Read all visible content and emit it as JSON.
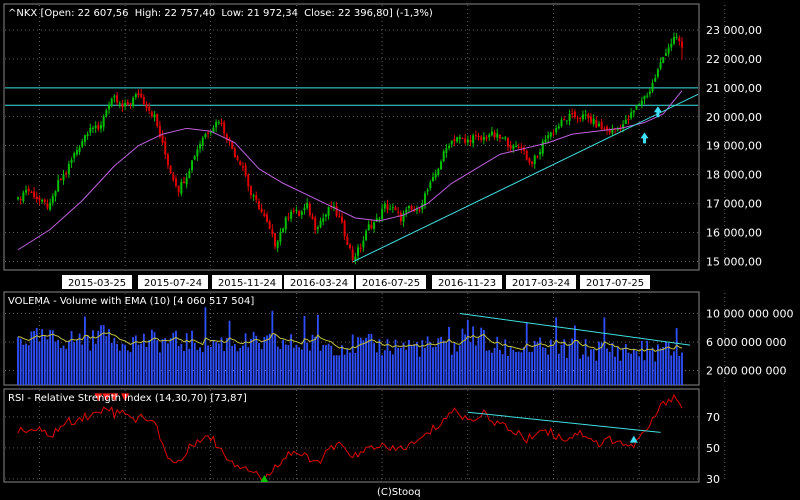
{
  "header": {
    "symbol": "^NKX",
    "open_label": "Open:",
    "open": "22 607,56",
    "high_label": "High:",
    "high": "22 757,40",
    "low_label": "Low:",
    "low": "21 972,34",
    "close_label": "Close:",
    "close": "22 396,80",
    "change": "(-1,3%)"
  },
  "footer": {
    "credit": "(C)Stooq"
  },
  "colors": {
    "up_candle": "#00c000",
    "down_candle": "#e00000",
    "ema": "#c060e0",
    "trendline": "#40e0e0",
    "volume": "#3050ff",
    "volume_ema": "#c0c040",
    "rsi": "#e00000",
    "arrow_up": "#40e0ff",
    "arrow_down": "#ff2020",
    "grid": "#9a9a9a"
  },
  "chart_data": [
    {
      "type": "candlestick",
      "title": "^NKX",
      "x_tick_labels": [
        "2015-03-25",
        "2015-07-24",
        "2015-11-24",
        "2016-03-24",
        "2016-07-25",
        "2016-11-23",
        "2017-03-24",
        "2017-07-25"
      ],
      "y_tick_labels": [
        "23 000,00",
        "22 000,00",
        "21 000,00",
        "20 000,00",
        "19 000,00",
        "18 000,00",
        "17 000,00",
        "16 000,00",
        "15 000,00"
      ],
      "y_ticks": [
        23000,
        22000,
        21000,
        20000,
        19000,
        18000,
        17000,
        16000,
        15000
      ],
      "ylim": [
        14700,
        23900
      ],
      "last_candle": {
        "open": 22607.56,
        "high": 22757.4,
        "low": 21972.34,
        "close": 22396.8
      },
      "close_path": [
        [
          0,
          17100
        ],
        [
          3,
          17500
        ],
        [
          6,
          17300
        ],
        [
          9,
          17000
        ],
        [
          12,
          16900
        ],
        [
          15,
          17700
        ],
        [
          18,
          18100
        ],
        [
          21,
          18700
        ],
        [
          24,
          19200
        ],
        [
          27,
          19700
        ],
        [
          30,
          19500
        ],
        [
          33,
          20300
        ],
        [
          36,
          20600
        ],
        [
          39,
          20300
        ],
        [
          42,
          20500
        ],
        [
          45,
          20800
        ],
        [
          48,
          20400
        ],
        [
          51,
          20000
        ],
        [
          54,
          19000
        ],
        [
          57,
          18100
        ],
        [
          60,
          17500
        ],
        [
          63,
          18000
        ],
        [
          66,
          18700
        ],
        [
          69,
          19300
        ],
        [
          72,
          19600
        ],
        [
          75,
          19900
        ],
        [
          78,
          19300
        ],
        [
          81,
          18700
        ],
        [
          84,
          18300
        ],
        [
          87,
          17300
        ],
        [
          90,
          16900
        ],
        [
          93,
          16300
        ],
        [
          96,
          15600
        ],
        [
          99,
          16200
        ],
        [
          102,
          16800
        ],
        [
          105,
          16600
        ],
        [
          108,
          16900
        ],
        [
          111,
          16200
        ],
        [
          114,
          16500
        ],
        [
          117,
          16900
        ],
        [
          120,
          16500
        ],
        [
          123,
          15700
        ],
        [
          125,
          15100
        ],
        [
          128,
          15500
        ],
        [
          131,
          16200
        ],
        [
          134,
          16400
        ],
        [
          137,
          16900
        ],
        [
          140,
          16800
        ],
        [
          143,
          16500
        ],
        [
          146,
          16800
        ],
        [
          149,
          16700
        ],
        [
          152,
          17300
        ],
        [
          155,
          17800
        ],
        [
          158,
          18500
        ],
        [
          161,
          19100
        ],
        [
          164,
          19300
        ],
        [
          167,
          19100
        ],
        [
          170,
          19300
        ],
        [
          173,
          19200
        ],
        [
          176,
          19400
        ],
        [
          179,
          19300
        ],
        [
          182,
          19200
        ],
        [
          185,
          18900
        ],
        [
          188,
          19000
        ],
        [
          191,
          18400
        ],
        [
          194,
          18600
        ],
        [
          197,
          19300
        ],
        [
          200,
          19500
        ],
        [
          203,
          19800
        ],
        [
          206,
          20000
        ],
        [
          209,
          20000
        ],
        [
          212,
          20000
        ],
        [
          215,
          19800
        ],
        [
          218,
          19600
        ],
        [
          221,
          19500
        ],
        [
          224,
          19600
        ],
        [
          227,
          19800
        ],
        [
          230,
          20200
        ],
        [
          233,
          20600
        ],
        [
          236,
          20900
        ],
        [
          239,
          21600
        ],
        [
          242,
          22300
        ],
        [
          245,
          22700
        ],
        [
          247,
          22600
        ],
        [
          248,
          22397
        ]
      ],
      "ema_path": [
        [
          0,
          15400
        ],
        [
          12,
          16100
        ],
        [
          24,
          17100
        ],
        [
          36,
          18300
        ],
        [
          45,
          19000
        ],
        [
          54,
          19400
        ],
        [
          63,
          19600
        ],
        [
          72,
          19500
        ],
        [
          81,
          19100
        ],
        [
          90,
          18200
        ],
        [
          99,
          17700
        ],
        [
          108,
          17300
        ],
        [
          117,
          16900
        ],
        [
          126,
          16500
        ],
        [
          135,
          16400
        ],
        [
          144,
          16600
        ],
        [
          153,
          17000
        ],
        [
          162,
          17700
        ],
        [
          171,
          18200
        ],
        [
          180,
          18700
        ],
        [
          189,
          18900
        ],
        [
          198,
          19100
        ],
        [
          207,
          19400
        ],
        [
          216,
          19500
        ],
        [
          225,
          19600
        ],
        [
          234,
          19800
        ],
        [
          241,
          20100
        ],
        [
          248,
          20900
        ]
      ],
      "horizontal_lines": [
        21000,
        20400
      ],
      "trendline": [
        [
          125,
          14980
        ],
        [
          248,
          20500
        ]
      ]
    },
    {
      "type": "bar",
      "title": "VOLEMA - Volume with EMA (10) [4 060 517 504]",
      "y_tick_labels": [
        "10 000 000 000",
        "6 000 000 000",
        "2 000 000 000"
      ],
      "y_ticks": [
        10000000000,
        6000000000,
        2000000000
      ],
      "ylim": [
        0,
        13000000000
      ]
    },
    {
      "type": "line",
      "title": "RSI - Relative Strength Index (14,30,70) [73,87]",
      "y_tick_labels": [
        "70",
        "50",
        "30"
      ],
      "y_ticks": [
        70,
        50,
        30
      ],
      "ylim": [
        28,
        88
      ],
      "path": [
        [
          0,
          60
        ],
        [
          6,
          62
        ],
        [
          12,
          58
        ],
        [
          18,
          66
        ],
        [
          24,
          70
        ],
        [
          30,
          72
        ],
        [
          33,
          78
        ],
        [
          36,
          72
        ],
        [
          40,
          74
        ],
        [
          44,
          68
        ],
        [
          48,
          70
        ],
        [
          52,
          63
        ],
        [
          55,
          48
        ],
        [
          58,
          40
        ],
        [
          61,
          42
        ],
        [
          65,
          52
        ],
        [
          69,
          58
        ],
        [
          73,
          55
        ],
        [
          77,
          46
        ],
        [
          81,
          40
        ],
        [
          85,
          38
        ],
        [
          89,
          34
        ],
        [
          92,
          28
        ],
        [
          95,
          36
        ],
        [
          99,
          44
        ],
        [
          103,
          48
        ],
        [
          107,
          44
        ],
        [
          111,
          40
        ],
        [
          115,
          46
        ],
        [
          119,
          52
        ],
        [
          123,
          48
        ],
        [
          127,
          44
        ],
        [
          131,
          50
        ],
        [
          135,
          52
        ],
        [
          139,
          48
        ],
        [
          143,
          50
        ],
        [
          147,
          52
        ],
        [
          151,
          56
        ],
        [
          155,
          62
        ],
        [
          159,
          68
        ],
        [
          162,
          74
        ],
        [
          165,
          72
        ],
        [
          168,
          68
        ],
        [
          171,
          70
        ],
        [
          175,
          72
        ],
        [
          179,
          66
        ],
        [
          183,
          62
        ],
        [
          187,
          60
        ],
        [
          190,
          54
        ],
        [
          193,
          60
        ],
        [
          197,
          62
        ],
        [
          201,
          58
        ],
        [
          205,
          56
        ],
        [
          209,
          60
        ],
        [
          213,
          58
        ],
        [
          217,
          52
        ],
        [
          221,
          56
        ],
        [
          225,
          54
        ],
        [
          229,
          50
        ],
        [
          233,
          58
        ],
        [
          236,
          64
        ],
        [
          239,
          74
        ],
        [
          242,
          80
        ],
        [
          245,
          84
        ],
        [
          247,
          79
        ],
        [
          248,
          74
        ]
      ],
      "down_arrows_at": [
        30,
        33,
        36,
        40
      ],
      "up_arrows_at": [
        92,
        230
      ]
    }
  ]
}
